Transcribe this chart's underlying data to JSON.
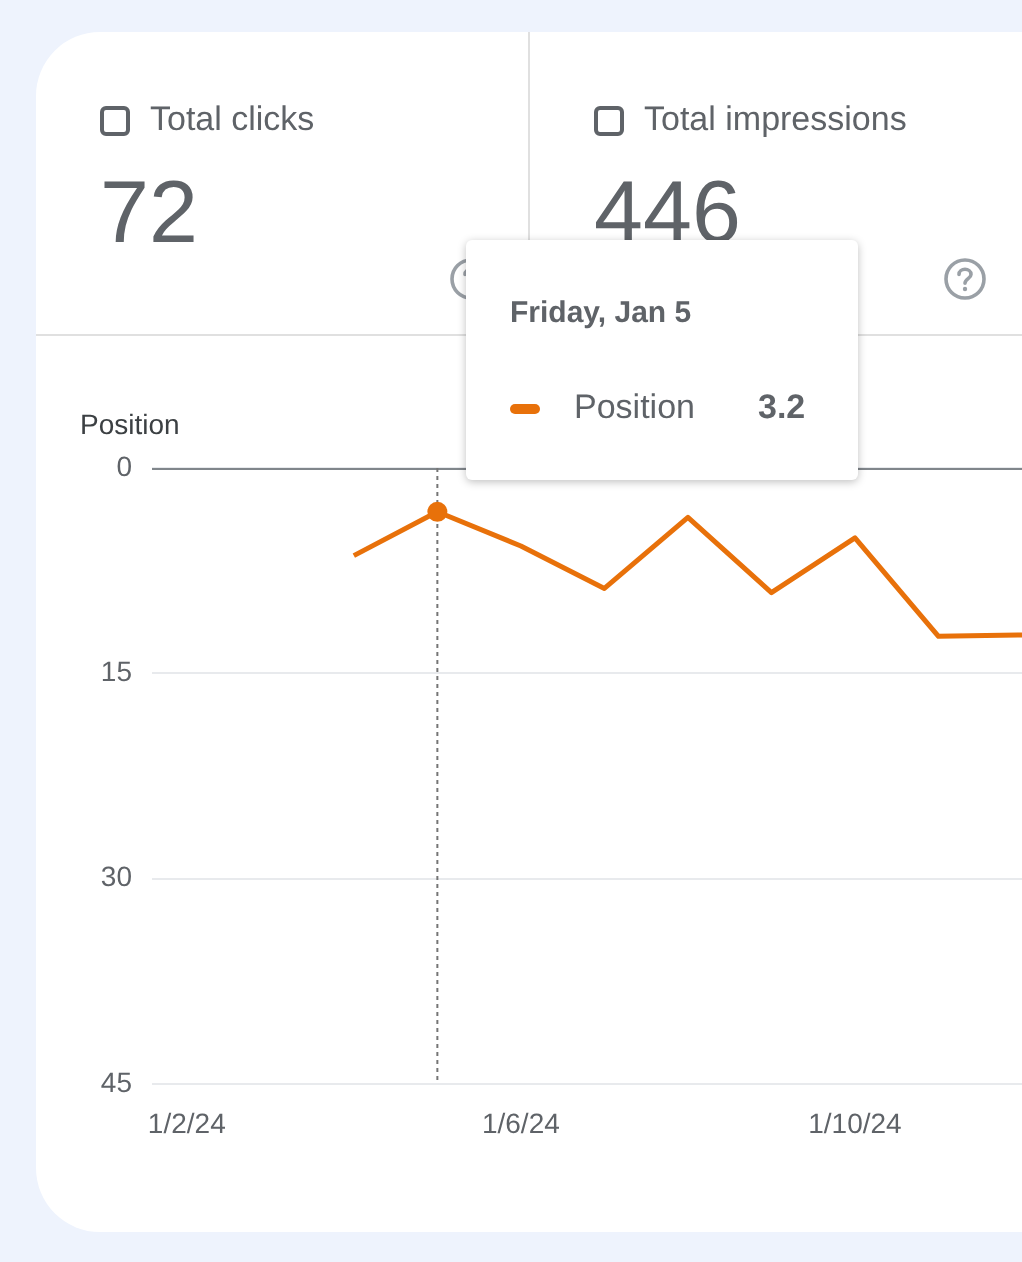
{
  "chart_data": [
    {
      "type": "other",
      "annotations": [
        "Total clicks",
        "72",
        "Total impressions",
        "446"
      ]
    },
    {
      "type": "line",
      "ylabel": "Position",
      "x": [
        "--01-04",
        "--01-05",
        "--01-06",
        "--01-07",
        "--01-08",
        "--01-09",
        "--01-10",
        "--01-11",
        "--01-12"
      ],
      "series": [
        {
          "name": "Position",
          "color": "#e8710a",
          "values": [
            6.4,
            3.2,
            5.7,
            8.8,
            3.6,
            9.1,
            5.1,
            12.3,
            12.2
          ]
        }
      ],
      "xlim": [
        "--01-01T14:00",
        "--01-12T00:00"
      ],
      "xticks": [
        {
          "value": "--01-02",
          "label": "1/2/24"
        },
        {
          "value": "--01-06",
          "label": "1/6/24"
        },
        {
          "value": "--01-10",
          "label": "1/10/24"
        }
      ],
      "ylim": [
        45,
        0
      ],
      "yticks": [
        0,
        15,
        30,
        45
      ],
      "grid": "y",
      "legend": "top",
      "marker": "none",
      "line_style": "solid",
      "ref_lines": [
        {
          "axis": "x",
          "value": "--01-05",
          "line_style": "dotted",
          "color": "#757575"
        }
      ],
      "annotations": [
        "Friday, Jan 5",
        "3.2"
      ]
    }
  ]
}
